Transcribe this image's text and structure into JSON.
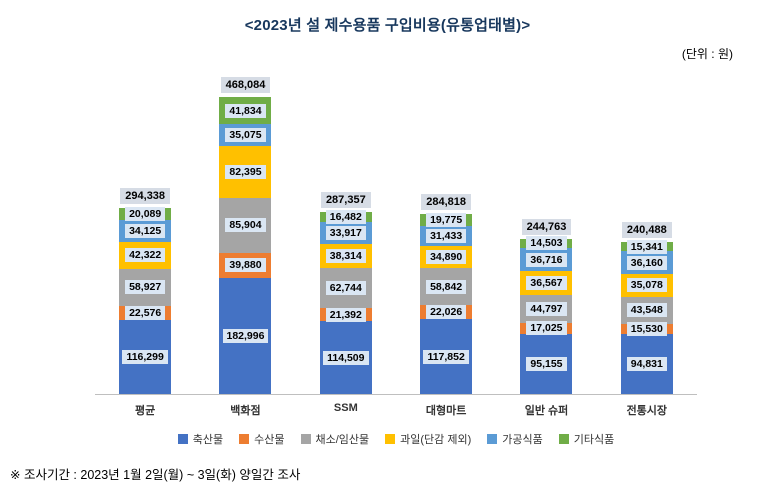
{
  "title": "<2023년 설 제수용품 구입비용(유통업태별)>",
  "unit_label": "(단위 : 원)",
  "footnote": "※ 조사기간 : 2023년 1월 2일(월) ~ 3일(화) 양일간 조사",
  "colors": {
    "title": "#17375d",
    "total_label_bg": "#d6dce5",
    "segment_label_bg": "#dae6f3"
  },
  "chart_data": {
    "type": "bar",
    "stacked": true,
    "title": "<2023년 설 제수용품 구입비용(유통업태별)>",
    "unit": "원",
    "categories": [
      "평균",
      "백화점",
      "SSM",
      "대형마트",
      "일반 슈퍼",
      "전통시장"
    ],
    "totals": [
      294338,
      468084,
      287357,
      284818,
      244763,
      240488
    ],
    "series": [
      {
        "name": "축산물",
        "color": "#4472c4",
        "values": [
          116299,
          182996,
          114509,
          117852,
          95155,
          94831
        ]
      },
      {
        "name": "수산물",
        "color": "#ed7d31",
        "values": [
          22576,
          39880,
          21392,
          22026,
          17025,
          15530
        ]
      },
      {
        "name": "채소/임산물",
        "color": "#a5a5a5",
        "values": [
          58927,
          85904,
          62744,
          58842,
          44797,
          43548
        ]
      },
      {
        "name": "과일(단감 제외)",
        "color": "#ffc000",
        "values": [
          42322,
          82395,
          38314,
          34890,
          36567,
          35078
        ]
      },
      {
        "name": "가공식품",
        "color": "#5b9bd5",
        "values": [
          34125,
          35075,
          33917,
          31433,
          36716,
          36160
        ]
      },
      {
        "name": "기타식품",
        "color": "#70ad47",
        "values": [
          20089,
          41834,
          16482,
          19775,
          14503,
          15341
        ]
      }
    ],
    "ylim": [
      0,
      500000
    ],
    "grid": false,
    "legend_position": "bottom",
    "data_labels": true
  }
}
